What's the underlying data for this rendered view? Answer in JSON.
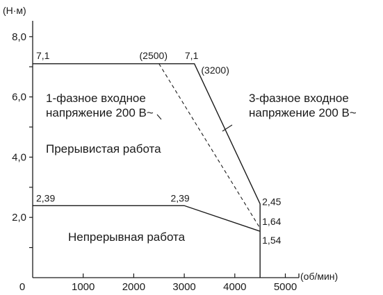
{
  "chart_data": {
    "type": "line",
    "y_unit": "(Н·м)",
    "x_unit": "(об/мин)",
    "xlim": [
      0,
      5000
    ],
    "ylim": [
      0,
      8.0
    ],
    "x_ticks": [
      {
        "value": 0,
        "label": "0"
      },
      {
        "value": 1000,
        "label": "1000"
      },
      {
        "value": 2000,
        "label": "2000"
      },
      {
        "value": 3000,
        "label": "3000"
      },
      {
        "value": 4000,
        "label": "4000"
      },
      {
        "value": 5000,
        "label": "5000"
      }
    ],
    "y_ticks": [
      {
        "value": 0,
        "label": ""
      },
      {
        "value": 1,
        "label": ""
      },
      {
        "value": 2,
        "label": "2,0"
      },
      {
        "value": 3,
        "label": ""
      },
      {
        "value": 4,
        "label": "4,0"
      },
      {
        "value": 5,
        "label": ""
      },
      {
        "value": 6,
        "label": "6,0"
      },
      {
        "value": 7,
        "label": ""
      },
      {
        "value": 8,
        "label": "8,0"
      }
    ],
    "origin_label": "0",
    "series": [
      {
        "style": "solid",
        "points": [
          [
            0,
            7.1
          ],
          [
            3200,
            7.1
          ],
          [
            4500,
            2.45
          ],
          [
            4500,
            0
          ]
        ]
      },
      {
        "style": "solid",
        "points": [
          [
            0,
            2.39
          ],
          [
            3000,
            2.39
          ],
          [
            4500,
            1.54
          ]
        ]
      },
      {
        "style": "dashed",
        "points": [
          [
            2500,
            7.1
          ],
          [
            4500,
            1.64
          ]
        ]
      }
    ],
    "point_labels": [
      {
        "text": "7,1",
        "x": 0,
        "y": 7.1
      },
      {
        "text": "(2500)",
        "x": 2500,
        "y": 7.1
      },
      {
        "text": "7,1",
        "x": 3200,
        "y": 7.1
      },
      {
        "text": "(3200)",
        "x": 3200,
        "y": 7.1
      },
      {
        "text": "2,39",
        "x": 0,
        "y": 2.39
      },
      {
        "text": "2,39",
        "x": 3000,
        "y": 2.39
      },
      {
        "text": "2,45",
        "x": 4500,
        "y": 2.45
      },
      {
        "text": "1,64",
        "x": 4500,
        "y": 1.64
      },
      {
        "text": "1,54",
        "x": 4500,
        "y": 1.54
      }
    ],
    "annotations": {
      "single_phase": [
        "1-фазное входное",
        "напряжение 200 В~"
      ],
      "three_phase": [
        "3-фазное входное",
        "напряжение 200 В~"
      ],
      "intermittent": "Прерывистая работа",
      "continuous": "Непрерывная работа"
    }
  }
}
